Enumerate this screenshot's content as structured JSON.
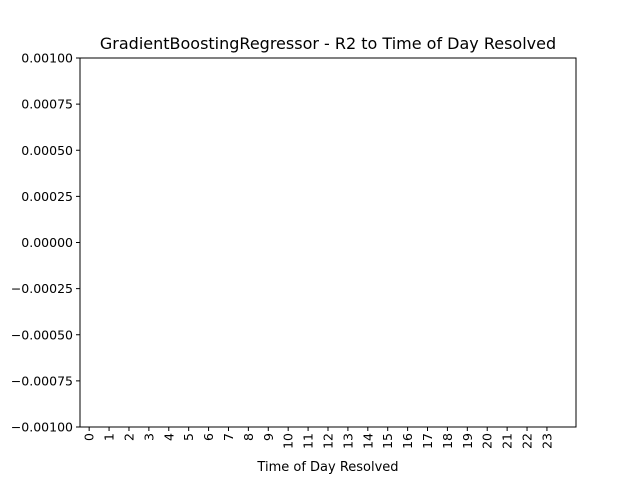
{
  "chart_data": {
    "type": "bar",
    "title": "GradientBoostingRegressor - R2 to Time of Day Resolved",
    "xlabel": "Time of Day Resolved",
    "categories": [
      "0",
      "1",
      "2",
      "3",
      "4",
      "5",
      "6",
      "7",
      "8",
      "9",
      "10",
      "11",
      "12",
      "13",
      "14",
      "15",
      "16",
      "17",
      "18",
      "19",
      "20",
      "21",
      "22",
      "23"
    ],
    "values": [
      0,
      0,
      0,
      0,
      0,
      0,
      0,
      0,
      0,
      0,
      0,
      0,
      0,
      0,
      0,
      0,
      0,
      0,
      0,
      0,
      0,
      0,
      0,
      0
    ],
    "color": "#1f77b4",
    "ylim": [
      -0.001,
      0.001
    ],
    "yticks": [
      {
        "value": -0.001,
        "label": "−0.00100"
      },
      {
        "value": -0.00075,
        "label": "−0.00075"
      },
      {
        "value": -0.0005,
        "label": "−0.00050"
      },
      {
        "value": -0.00025,
        "label": "−0.00025"
      },
      {
        "value": 0,
        "label": "0.00000"
      },
      {
        "value": 0.00025,
        "label": "0.00025"
      },
      {
        "value": 0.0005,
        "label": "0.00050"
      },
      {
        "value": 0.00075,
        "label": "0.00075"
      },
      {
        "value": 0.001,
        "label": "0.00100"
      }
    ],
    "grid": false
  }
}
